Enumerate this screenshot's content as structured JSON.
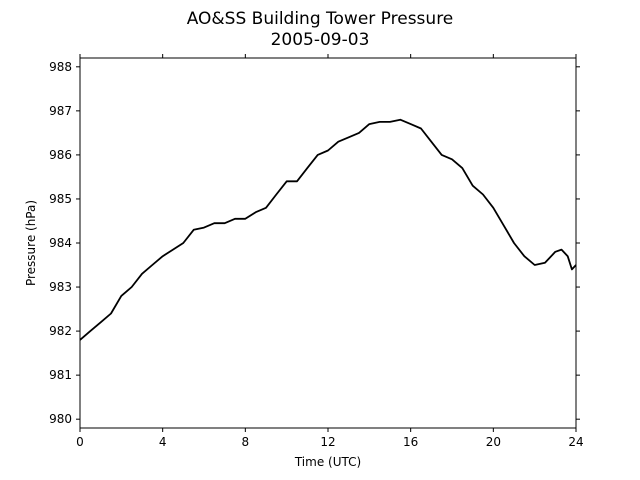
{
  "chart_data": {
    "type": "line",
    "title": "AO&SS Building Tower Pressure",
    "subtitle": "2005-09-03",
    "xlabel": "Time (UTC)",
    "ylabel": "Pressure (hPa)",
    "xlim": [
      0,
      24
    ],
    "ylim": [
      979.8,
      988.2
    ],
    "xticks": [
      0,
      4,
      8,
      12,
      16,
      20,
      24
    ],
    "yticks": [
      980,
      981,
      982,
      983,
      984,
      985,
      986,
      987,
      988
    ],
    "grid": false,
    "line_color": "#000000",
    "series": [
      {
        "x": [
          0,
          0.5,
          1,
          1.5,
          2,
          2.5,
          3,
          3.5,
          4,
          4.5,
          5,
          5.5,
          6,
          6.5,
          7,
          7.5,
          8,
          8.5,
          9,
          9.5,
          10,
          10.5,
          11,
          11.5,
          12,
          12.5,
          13,
          13.5,
          14,
          14.5,
          15,
          15.5,
          16,
          16.5,
          17,
          17.5,
          18,
          18.5,
          19,
          19.5,
          20,
          20.5,
          21,
          21.5,
          22,
          22.5,
          23,
          23.3,
          23.6,
          23.8,
          24
        ],
        "y": [
          981.8,
          982.0,
          982.2,
          982.4,
          982.8,
          983.0,
          983.3,
          983.5,
          983.7,
          983.85,
          984.0,
          984.3,
          984.35,
          984.45,
          984.45,
          984.55,
          984.55,
          984.7,
          984.8,
          985.1,
          985.4,
          985.4,
          985.7,
          986.0,
          986.1,
          986.3,
          986.4,
          986.5,
          986.7,
          986.75,
          986.75,
          986.8,
          986.7,
          986.6,
          986.3,
          986.0,
          985.9,
          985.7,
          985.3,
          985.1,
          984.8,
          984.4,
          984.0,
          983.7,
          983.5,
          983.55,
          983.8,
          983.85,
          983.7,
          983.4,
          983.5
        ]
      }
    ]
  }
}
